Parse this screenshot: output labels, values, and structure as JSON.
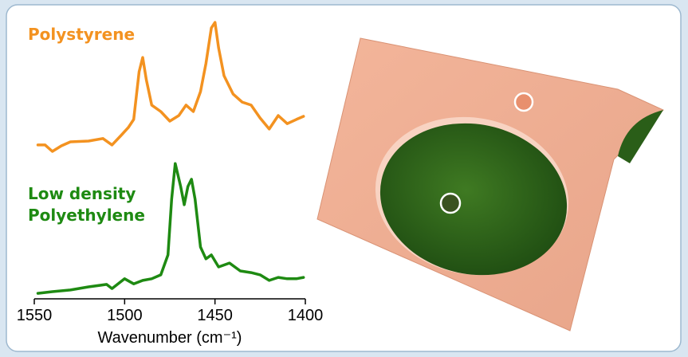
{
  "chart_data": {
    "type": "line",
    "xlabel": "Wavenumber (cm⁻¹)",
    "xlim": [
      1550,
      1400
    ],
    "xticks": [
      1550,
      1500,
      1450,
      1400
    ],
    "ylim": [
      0,
      100
    ],
    "series": [
      {
        "name": "Polystyrene",
        "color": "#f39220",
        "x": [
          1548,
          1544,
          1540,
          1535,
          1530,
          1520,
          1512,
          1507,
          1502,
          1498,
          1495,
          1492,
          1490,
          1488,
          1485,
          1480,
          1475,
          1470,
          1466,
          1462,
          1458,
          1455,
          1452,
          1450,
          1448,
          1445,
          1440,
          1435,
          1430,
          1425,
          1420,
          1415,
          1410,
          1405,
          1401
        ],
        "values": [
          54.0,
          54.0,
          51.7,
          53.7,
          55.1,
          55.4,
          56.3,
          54.0,
          57.4,
          60.2,
          63.1,
          80.1,
          85.2,
          77.3,
          68.2,
          65.9,
          62.5,
          64.5,
          68.2,
          65.9,
          73.0,
          83.0,
          95.7,
          97.7,
          88.6,
          78.7,
          72.2,
          69.3,
          68.2,
          63.6,
          59.7,
          64.5,
          61.6,
          63.1,
          64.2
        ]
      },
      {
        "name": "Low density Polyethylene",
        "color": "#1e8a12",
        "x": [
          1548,
          1540,
          1530,
          1520,
          1510,
          1507,
          1500,
          1495,
          1490,
          1485,
          1480,
          1476,
          1474,
          1472,
          1469,
          1467,
          1465,
          1463,
          1461,
          1458,
          1455,
          1452,
          1448,
          1442,
          1436,
          1430,
          1425,
          1420,
          1415,
          1410,
          1405,
          1401
        ],
        "values": [
          1.1,
          1.7,
          2.3,
          3.4,
          4.3,
          2.8,
          6.3,
          4.5,
          5.7,
          6.3,
          7.7,
          14.8,
          34.7,
          47.4,
          39.2,
          32.7,
          39.2,
          41.8,
          34.7,
          17.6,
          13.4,
          14.8,
          10.5,
          11.9,
          9.1,
          8.5,
          7.7,
          5.7,
          6.8,
          6.3,
          6.3,
          6.8
        ]
      }
    ]
  }
}
